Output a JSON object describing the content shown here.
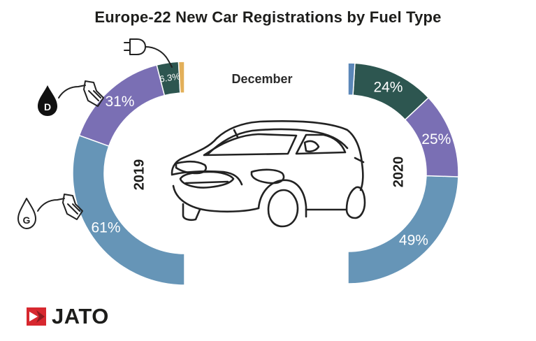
{
  "chart_data": {
    "type": "donut",
    "title": "Europe-22 New Car Registrations by Fuel Type",
    "month_label": "December",
    "categories": [
      "Gasoline",
      "Diesel",
      "Electric",
      "Other"
    ],
    "colors": {
      "Gasoline": "#6695b7",
      "Diesel": "#7a6fb4",
      "Electric": "#2d5650",
      "Other_2019": "#e3b05a",
      "Other_2020": "#5b87b8"
    },
    "panels": [
      {
        "year": "2019",
        "values": [
          61,
          31,
          6.3,
          1.7
        ],
        "labels": [
          "61%",
          "31%",
          "6.3%",
          ""
        ]
      },
      {
        "year": "2020",
        "values": [
          49,
          25,
          24,
          2
        ],
        "labels": [
          "49%",
          "25%",
          "24%",
          ""
        ]
      }
    ],
    "icons": [
      "plug-icon",
      "diesel-pump-icon",
      "gasoline-pump-icon",
      "car-icon"
    ],
    "pump_letters": {
      "diesel": "D",
      "gasoline": "G"
    }
  },
  "logo": {
    "text": "JATO",
    "mark_color": "#d7282f"
  }
}
